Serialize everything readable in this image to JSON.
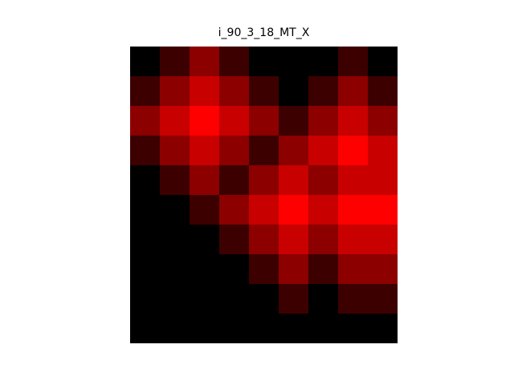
{
  "chart_data": {
    "type": "heatmap",
    "title": "i_90_3_18_MT_X",
    "colormap": "black-to-red",
    "color_range": [
      0,
      255
    ],
    "rows": 10,
    "cols": 9,
    "values": [
      [
        0,
        60,
        140,
        60,
        0,
        0,
        0,
        60,
        0
      ],
      [
        60,
        140,
        200,
        140,
        60,
        0,
        60,
        140,
        60
      ],
      [
        140,
        200,
        255,
        200,
        140,
        60,
        140,
        200,
        140
      ],
      [
        60,
        140,
        200,
        140,
        60,
        140,
        200,
        255,
        200
      ],
      [
        0,
        60,
        140,
        60,
        140,
        200,
        140,
        200,
        200
      ],
      [
        0,
        0,
        60,
        140,
        200,
        255,
        200,
        255,
        255
      ],
      [
        0,
        0,
        0,
        60,
        140,
        200,
        140,
        200,
        200
      ],
      [
        0,
        0,
        0,
        0,
        60,
        140,
        60,
        140,
        140
      ],
      [
        0,
        0,
        0,
        0,
        0,
        60,
        0,
        60,
        60
      ],
      [
        0,
        0,
        0,
        0,
        0,
        0,
        0,
        0,
        0
      ]
    ],
    "xlabel": "",
    "ylabel": "",
    "axes_visible": false
  }
}
